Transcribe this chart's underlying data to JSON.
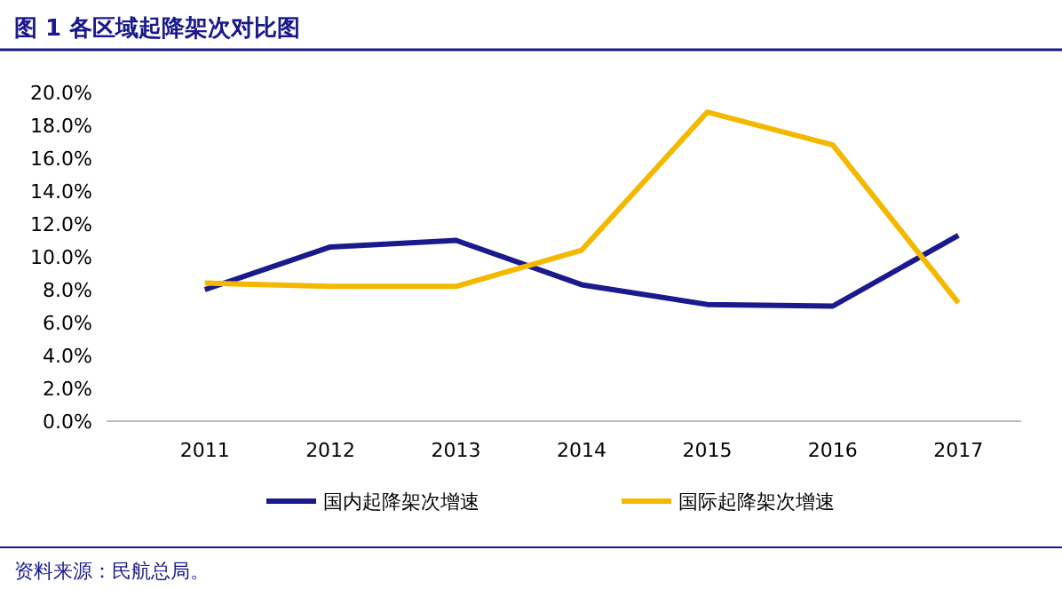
{
  "chart_data": {
    "type": "line",
    "title": "图 1  各区域起降架次对比图",
    "categories": [
      "2011",
      "2012",
      "2013",
      "2014",
      "2015",
      "2016",
      "2017"
    ],
    "series": [
      {
        "name": "国内起降架次增速",
        "color": "#1a1a8c",
        "values": [
          8.0,
          10.6,
          11.0,
          8.3,
          7.1,
          7.0,
          11.3
        ]
      },
      {
        "name": "国际起降架次增速",
        "color": "#f5b800",
        "values": [
          8.4,
          8.2,
          8.2,
          10.4,
          18.8,
          16.8,
          7.2
        ]
      }
    ],
    "ylim": [
      0,
      20
    ],
    "yticks": [
      {
        "value": 0,
        "label": "0.0%"
      },
      {
        "value": 2,
        "label": "2.0%"
      },
      {
        "value": 4,
        "label": "4.0%"
      },
      {
        "value": 6,
        "label": "6.0%"
      },
      {
        "value": 8,
        "label": "8.0%"
      },
      {
        "value": 10,
        "label": "10.0%"
      },
      {
        "value": 12,
        "label": "12.0%"
      },
      {
        "value": 14,
        "label": "14.0%"
      },
      {
        "value": 16,
        "label": "16.0%"
      },
      {
        "value": 18,
        "label": "18.0%"
      },
      {
        "value": 20,
        "label": "20.0%"
      }
    ],
    "grid": false,
    "legend": "bottom",
    "marker": "none",
    "line_style": "solid",
    "annotations": [
      "资料来源：民航总局。"
    ]
  }
}
